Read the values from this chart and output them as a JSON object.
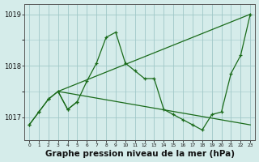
{
  "title": "Graphe pression niveau de la mer (hPa)",
  "xlabel_ticks": [
    0,
    1,
    2,
    3,
    4,
    5,
    6,
    7,
    8,
    9,
    10,
    11,
    12,
    13,
    14,
    15,
    16,
    17,
    18,
    19,
    20,
    21,
    22,
    23
  ],
  "ylim": [
    1016.55,
    1019.2
  ],
  "yticks": [
    1017,
    1018,
    1019
  ],
  "bg_color": "#d5ecea",
  "grid_color": "#b8d8d8",
  "line_color": "#1a6b1a",
  "main_series": [
    1016.85,
    1017.1,
    1017.35,
    1017.5,
    1017.15,
    1017.3,
    1017.7,
    1018.05,
    1018.55,
    1018.65,
    1018.05,
    1017.9,
    1017.75,
    1017.75,
    1017.15,
    1017.05,
    1016.95,
    1016.85,
    1016.75,
    1017.05,
    1017.1,
    1017.85,
    1018.2,
    1019.0
  ],
  "trend1_x": [
    3,
    23
  ],
  "trend1_y": [
    1017.5,
    1016.85
  ],
  "trend2_x": [
    3,
    23
  ],
  "trend2_y": [
    1017.5,
    1019.0
  ],
  "short_x": [
    0,
    1,
    2,
    3,
    4,
    5
  ],
  "short_y": [
    1016.85,
    1017.1,
    1017.35,
    1017.5,
    1017.15,
    1017.3
  ],
  "fontsize_title": 7.5,
  "fontsize_ticks": 6,
  "lw": 0.9,
  "marker_size": 3.5
}
